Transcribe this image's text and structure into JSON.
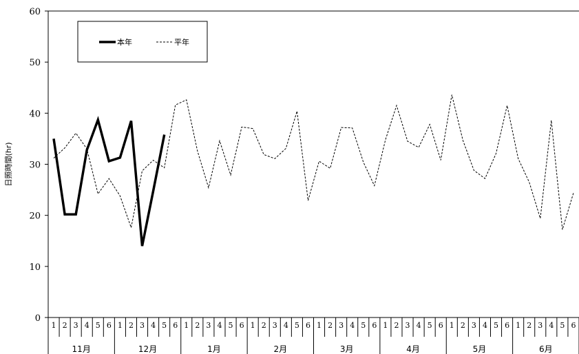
{
  "chart_data": {
    "type": "line",
    "ylabel": "日照時間(hr)",
    "ylim": [
      0,
      60
    ],
    "yticks": [
      0,
      10,
      20,
      30,
      40,
      50,
      60
    ],
    "pentad_labels": [
      "1",
      "2",
      "3",
      "4",
      "5",
      "6",
      "1",
      "2",
      "3",
      "4",
      "5",
      "6",
      "1",
      "2",
      "3",
      "4",
      "5",
      "6",
      "1",
      "2",
      "3",
      "4",
      "5",
      "6",
      "1",
      "2",
      "3",
      "4",
      "5",
      "6",
      "1",
      "2",
      "3",
      "4",
      "5",
      "6",
      "1",
      "2",
      "3",
      "4",
      "5",
      "6",
      "1",
      "2",
      "3",
      "4",
      "5",
      "6"
    ],
    "month_labels": [
      "11月",
      "12月",
      "1月",
      "2月",
      "3月",
      "4月",
      "5月",
      "6月"
    ],
    "legend_position": "top-left",
    "series": [
      {
        "name": "本年",
        "style": "solid-thick",
        "color": "#000000",
        "values": [
          35.0,
          20.2,
          20.2,
          32.8,
          38.7,
          30.6,
          31.3,
          38.5,
          14.0,
          24.8,
          35.8
        ]
      },
      {
        "name": "平年",
        "style": "dashed",
        "color": "#000000",
        "values": [
          31.2,
          33.2,
          36.1,
          33.0,
          24.2,
          27.2,
          23.8,
          17.6,
          28.7,
          30.8,
          29.3,
          41.6,
          42.6,
          32.6,
          25.4,
          34.6,
          27.9,
          37.3,
          37.0,
          31.9,
          31.1,
          33.1,
          40.4,
          22.9,
          30.6,
          29.2,
          37.2,
          37.1,
          30.4,
          25.8,
          34.8,
          41.5,
          34.5,
          33.3,
          37.8,
          30.8,
          43.6,
          34.7,
          28.8,
          27.2,
          32.1,
          41.5,
          31.1,
          26.5,
          19.4,
          38.6,
          17.2,
          24.4
        ]
      }
    ]
  }
}
